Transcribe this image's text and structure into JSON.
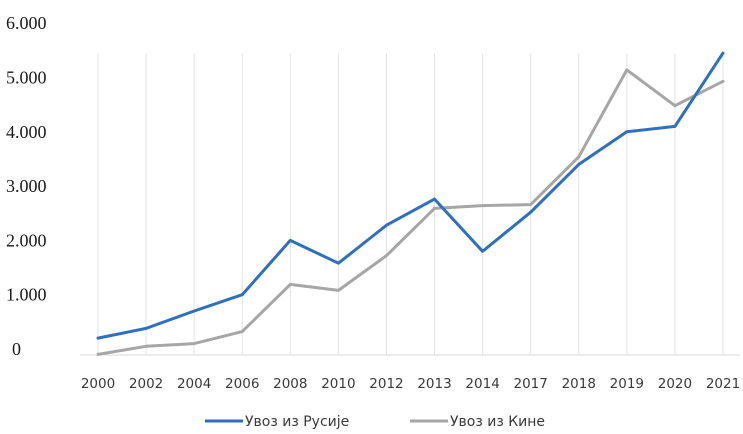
{
  "chart_data": {
    "type": "line",
    "categories": [
      "2000",
      "2002",
      "2004",
      "2006",
      "2008",
      "2010",
      "2012",
      "2013",
      "2014",
      "2017",
      "2018",
      "2019",
      "2020",
      "2021"
    ],
    "series": [
      {
        "name": "Увоз из Русије",
        "color": "#2e6fbf",
        "values": [
          200,
          380,
          700,
          1000,
          2000,
          1580,
          2280,
          2760,
          1800,
          2520,
          3400,
          4000,
          4100,
          5450
        ]
      },
      {
        "name": "Увоз из Кине",
        "color": "#a6a6a6",
        "values": [
          -100,
          50,
          100,
          320,
          1190,
          1080,
          1720,
          2590,
          2640,
          2660,
          3540,
          5140,
          4480,
          4930
        ]
      }
    ],
    "y_ticks": [
      {
        "value": 0,
        "label": "0"
      },
      {
        "value": 1000,
        "label": "1.000"
      },
      {
        "value": 2000,
        "label": "2.000"
      },
      {
        "value": 3000,
        "label": "3.000"
      },
      {
        "value": 4000,
        "label": "4.000"
      },
      {
        "value": 5000,
        "label": "5.000"
      },
      {
        "value": 6000,
        "label": "6.000"
      }
    ],
    "ylim": [
      -100,
      6000
    ],
    "grid": "vertical",
    "legend": "bottom",
    "title": "",
    "xlabel": "",
    "ylabel": ""
  }
}
